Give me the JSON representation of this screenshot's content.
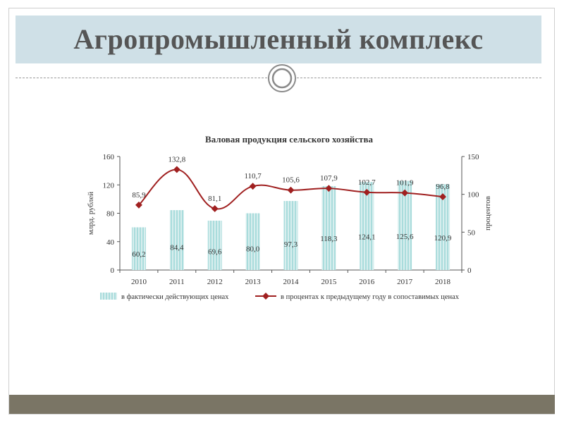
{
  "slide": {
    "title": "Агропромышленный комплекс"
  },
  "colors": {
    "title_band": "#cfe0e7",
    "bottom_band": "#7a7565",
    "bar_fill": "#a9dcdc",
    "bar_stripe": "#d8eeee",
    "line": "#a02020"
  },
  "chart_data": {
    "type": "bar+line",
    "title": "Валовая продукция сельского хозяйства",
    "categories": [
      "2010",
      "2011",
      "2012",
      "2013",
      "2014",
      "2015",
      "2016",
      "2017",
      "2018"
    ],
    "y_left": {
      "label": "млрд. рублей",
      "ticks": [
        "0",
        "40",
        "80",
        "120",
        "160"
      ],
      "range": [
        0,
        160
      ]
    },
    "y_right": {
      "label": "процентов",
      "ticks": [
        "0",
        "50",
        "100",
        "150"
      ],
      "range": [
        0,
        150
      ]
    },
    "series": [
      {
        "name": "в фактически действующих ценах",
        "type": "bar",
        "axis": "left",
        "values": [
          60.2,
          84.4,
          69.6,
          80.0,
          97.3,
          118.3,
          124.1,
          125.6,
          120.9
        ],
        "labels": [
          "60,2",
          "84,4",
          "69,6",
          "80,0",
          "97,3",
          "118,3",
          "124,1",
          "125,6",
          "120,9"
        ]
      },
      {
        "name": "в процентах к предыдущему году в сопоставимых ценах",
        "type": "line",
        "axis": "right",
        "values": [
          85.9,
          132.8,
          81.1,
          110.7,
          105.6,
          107.9,
          102.7,
          101.9,
          96.8
        ],
        "labels": [
          "85,9",
          "132,8",
          "81,1",
          "110,7",
          "105,6",
          "107,9",
          "102,7",
          "101,9",
          "96,8"
        ]
      }
    ],
    "legend_position": "bottom",
    "grid": false
  }
}
